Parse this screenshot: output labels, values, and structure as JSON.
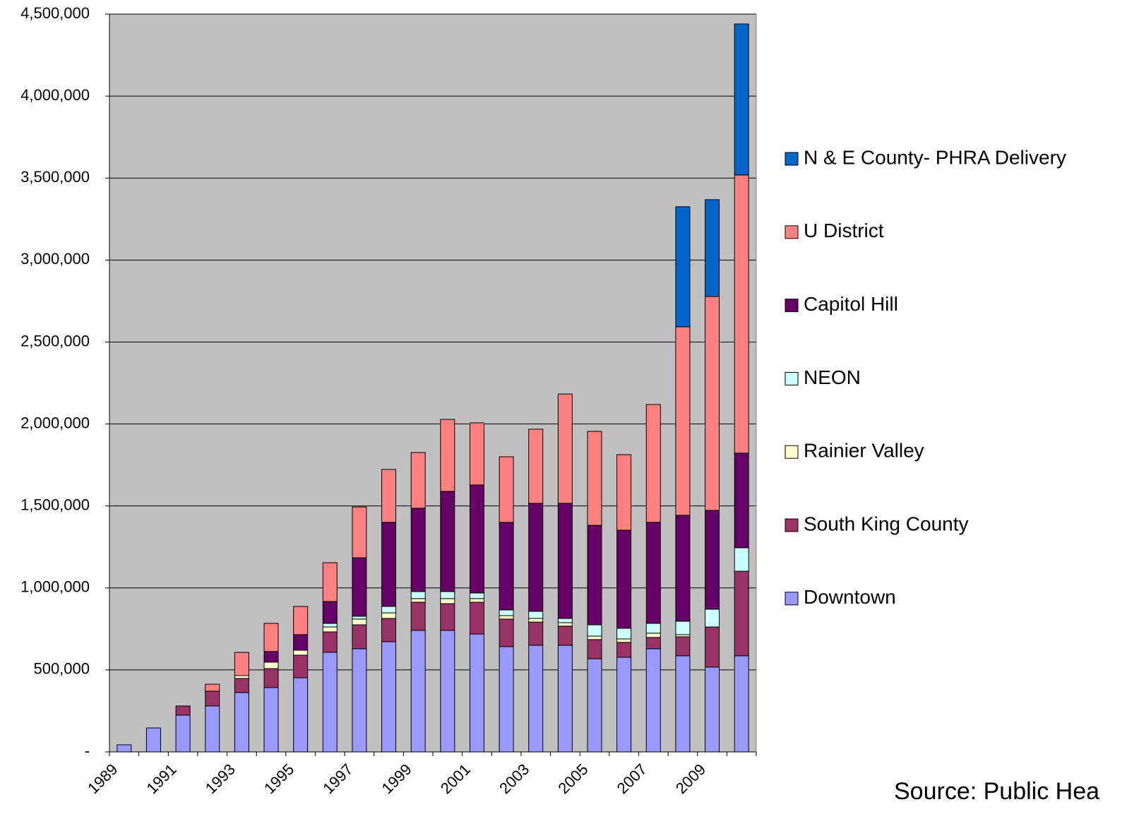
{
  "chart_data": {
    "type": "stacked-bar",
    "categories": [
      "1989",
      null,
      "1991",
      null,
      "1993",
      null,
      "1995",
      null,
      "1997",
      null,
      "1999",
      null,
      "2001",
      null,
      "2003",
      null,
      "2005",
      null,
      "2007",
      null,
      "2009",
      null
    ],
    "series": [
      {
        "name": "Downtown",
        "color": "#9999ff",
        "values": [
          43000,
          146000,
          224000,
          280000,
          362000,
          392000,
          452000,
          607000,
          629000,
          672000,
          741000,
          741000,
          719000,
          642000,
          650000,
          650000,
          568000,
          577000,
          629000,
          586000,
          517000,
          586000
        ]
      },
      {
        "name": "South King County",
        "color": "#993366",
        "values": [
          0,
          0,
          56000,
          90000,
          86000,
          116000,
          138000,
          125000,
          146000,
          142000,
          172000,
          163000,
          194000,
          168000,
          142000,
          117000,
          117000,
          91000,
          69000,
          116000,
          245000,
          516000
        ]
      },
      {
        "name": "Rainier Valley",
        "color": "#ffffcc",
        "values": [
          0,
          0,
          0,
          0,
          17000,
          39000,
          30000,
          30000,
          35000,
          34000,
          22000,
          31000,
          22000,
          21000,
          22000,
          21000,
          21000,
          21000,
          26000,
          13000,
          0,
          0
        ]
      },
      {
        "name": "NEON",
        "color": "#ccffff",
        "values": [
          0,
          0,
          0,
          0,
          0,
          0,
          0,
          22000,
          17000,
          39000,
          43000,
          43000,
          34000,
          35000,
          43000,
          26000,
          69000,
          65000,
          60000,
          82000,
          108000,
          143000
        ]
      },
      {
        "name": "Capitol Hill",
        "color": "#660066",
        "values": [
          0,
          0,
          0,
          0,
          0,
          65000,
          95000,
          133000,
          357000,
          513000,
          508000,
          611000,
          659000,
          534000,
          659000,
          702000,
          607000,
          598000,
          616000,
          646000,
          603000,
          577000
        ]
      },
      {
        "name": "U District",
        "color": "#ff8080",
        "values": [
          0,
          0,
          0,
          43000,
          142000,
          172000,
          172000,
          237000,
          310000,
          323000,
          340000,
          439000,
          379000,
          400000,
          452000,
          667000,
          573000,
          461000,
          719000,
          1150000,
          1305000,
          1697000
        ]
      },
      {
        "name": "N & E County- PHRA Delivery",
        "color": "#0066cc",
        "values": [
          0,
          0,
          0,
          0,
          0,
          0,
          0,
          0,
          0,
          0,
          0,
          0,
          0,
          0,
          0,
          0,
          0,
          0,
          0,
          732000,
          590000,
          921000
        ]
      }
    ],
    "ylim": [
      0,
      4500000
    ],
    "yticks": [
      {
        "value": 0,
        "label": "-"
      },
      {
        "value": 500000,
        "label": "500,000"
      },
      {
        "value": 1000000,
        "label": "1,000,000"
      },
      {
        "value": 1500000,
        "label": "1,500,000"
      },
      {
        "value": 2000000,
        "label": "2,000,000"
      },
      {
        "value": 2500000,
        "label": "2,500,000"
      },
      {
        "value": 3000000,
        "label": "3,000,000"
      },
      {
        "value": 3500000,
        "label": "3,500,000"
      },
      {
        "value": 4000000,
        "label": "4,000,000"
      },
      {
        "value": 4500000,
        "label": "4,500,000"
      }
    ],
    "grid": true,
    "plot_background": "#c0c0c0",
    "legend": "right",
    "annotation": "Source: Public Hea"
  }
}
